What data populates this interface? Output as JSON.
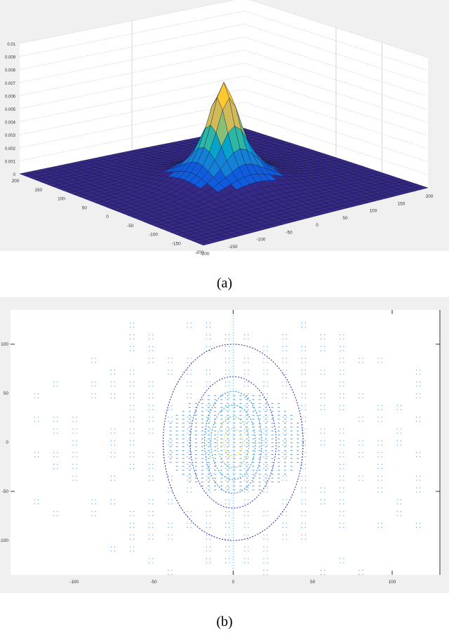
{
  "figure": {
    "captions": {
      "a": "(a)",
      "b": "(b)"
    }
  },
  "chart_data": [
    {
      "id": "a",
      "type": "surface3d",
      "title": "",
      "description": "3D mesh surface of a single sharp peak (Gaussian/Lorentzian-like) centered at (0,0) with parula colormap; ripples/concentric rings around base",
      "xlabel": "",
      "ylabel": "",
      "zlabel": "",
      "x_ticks": [
        "-200",
        "-150",
        "-100",
        "-50",
        "0",
        "50",
        "100",
        "150",
        "200"
      ],
      "y_ticks": [
        "200",
        "150",
        "100",
        "50",
        "0",
        "-50",
        "-100",
        "-150",
        "-200"
      ],
      "z_ticks": [
        "0",
        "0.001",
        "0.002",
        "0.003",
        "0.004",
        "0.005",
        "0.006",
        "0.007",
        "0.008",
        "0.009",
        "0.01"
      ],
      "xlim": [
        -200,
        200
      ],
      "ylim": [
        -200,
        200
      ],
      "zlim": [
        0,
        0.01
      ],
      "peak": {
        "x": 0,
        "y": 0,
        "z": 0.0078
      },
      "colormap": [
        "#352a87",
        "#0f5cdd",
        "#1481d6",
        "#06a4ca",
        "#2eb7a4",
        "#87bf77",
        "#d1bb59",
        "#fec832",
        "#f9fb0e"
      ],
      "grid": true
    },
    {
      "id": "b",
      "type": "contour",
      "title": "",
      "description": "Top-down contour/quiver-like view: nested elliptical contours centered at origin, inner yellow, outer dark blue; scattered light-blue point grid",
      "xlabel": "",
      "ylabel": "",
      "x_ticks": [
        "-100",
        "-50",
        "0",
        "50",
        "100"
      ],
      "y_ticks": [
        "100",
        "50",
        "0",
        "-50",
        "-100"
      ],
      "xlim": [
        -140,
        130
      ],
      "ylim": [
        -135,
        135
      ],
      "contours": [
        {
          "level": 1,
          "rx": 44,
          "ry": 100,
          "color": "#3b2fa0"
        },
        {
          "level": 2,
          "rx": 27,
          "ry": 67,
          "color": "#4a3bbd"
        },
        {
          "level": 3,
          "rx": 18,
          "ry": 52,
          "color": "#2b8ad6"
        },
        {
          "level": 4,
          "rx": 14,
          "ry": 38,
          "color": "#22a9c4"
        },
        {
          "level": 5,
          "rx": 10,
          "ry": 26,
          "color": "#78c27c"
        },
        {
          "level": 6,
          "rx": 6,
          "ry": 14,
          "color": "#f2d23a"
        }
      ],
      "grid": false
    }
  ]
}
